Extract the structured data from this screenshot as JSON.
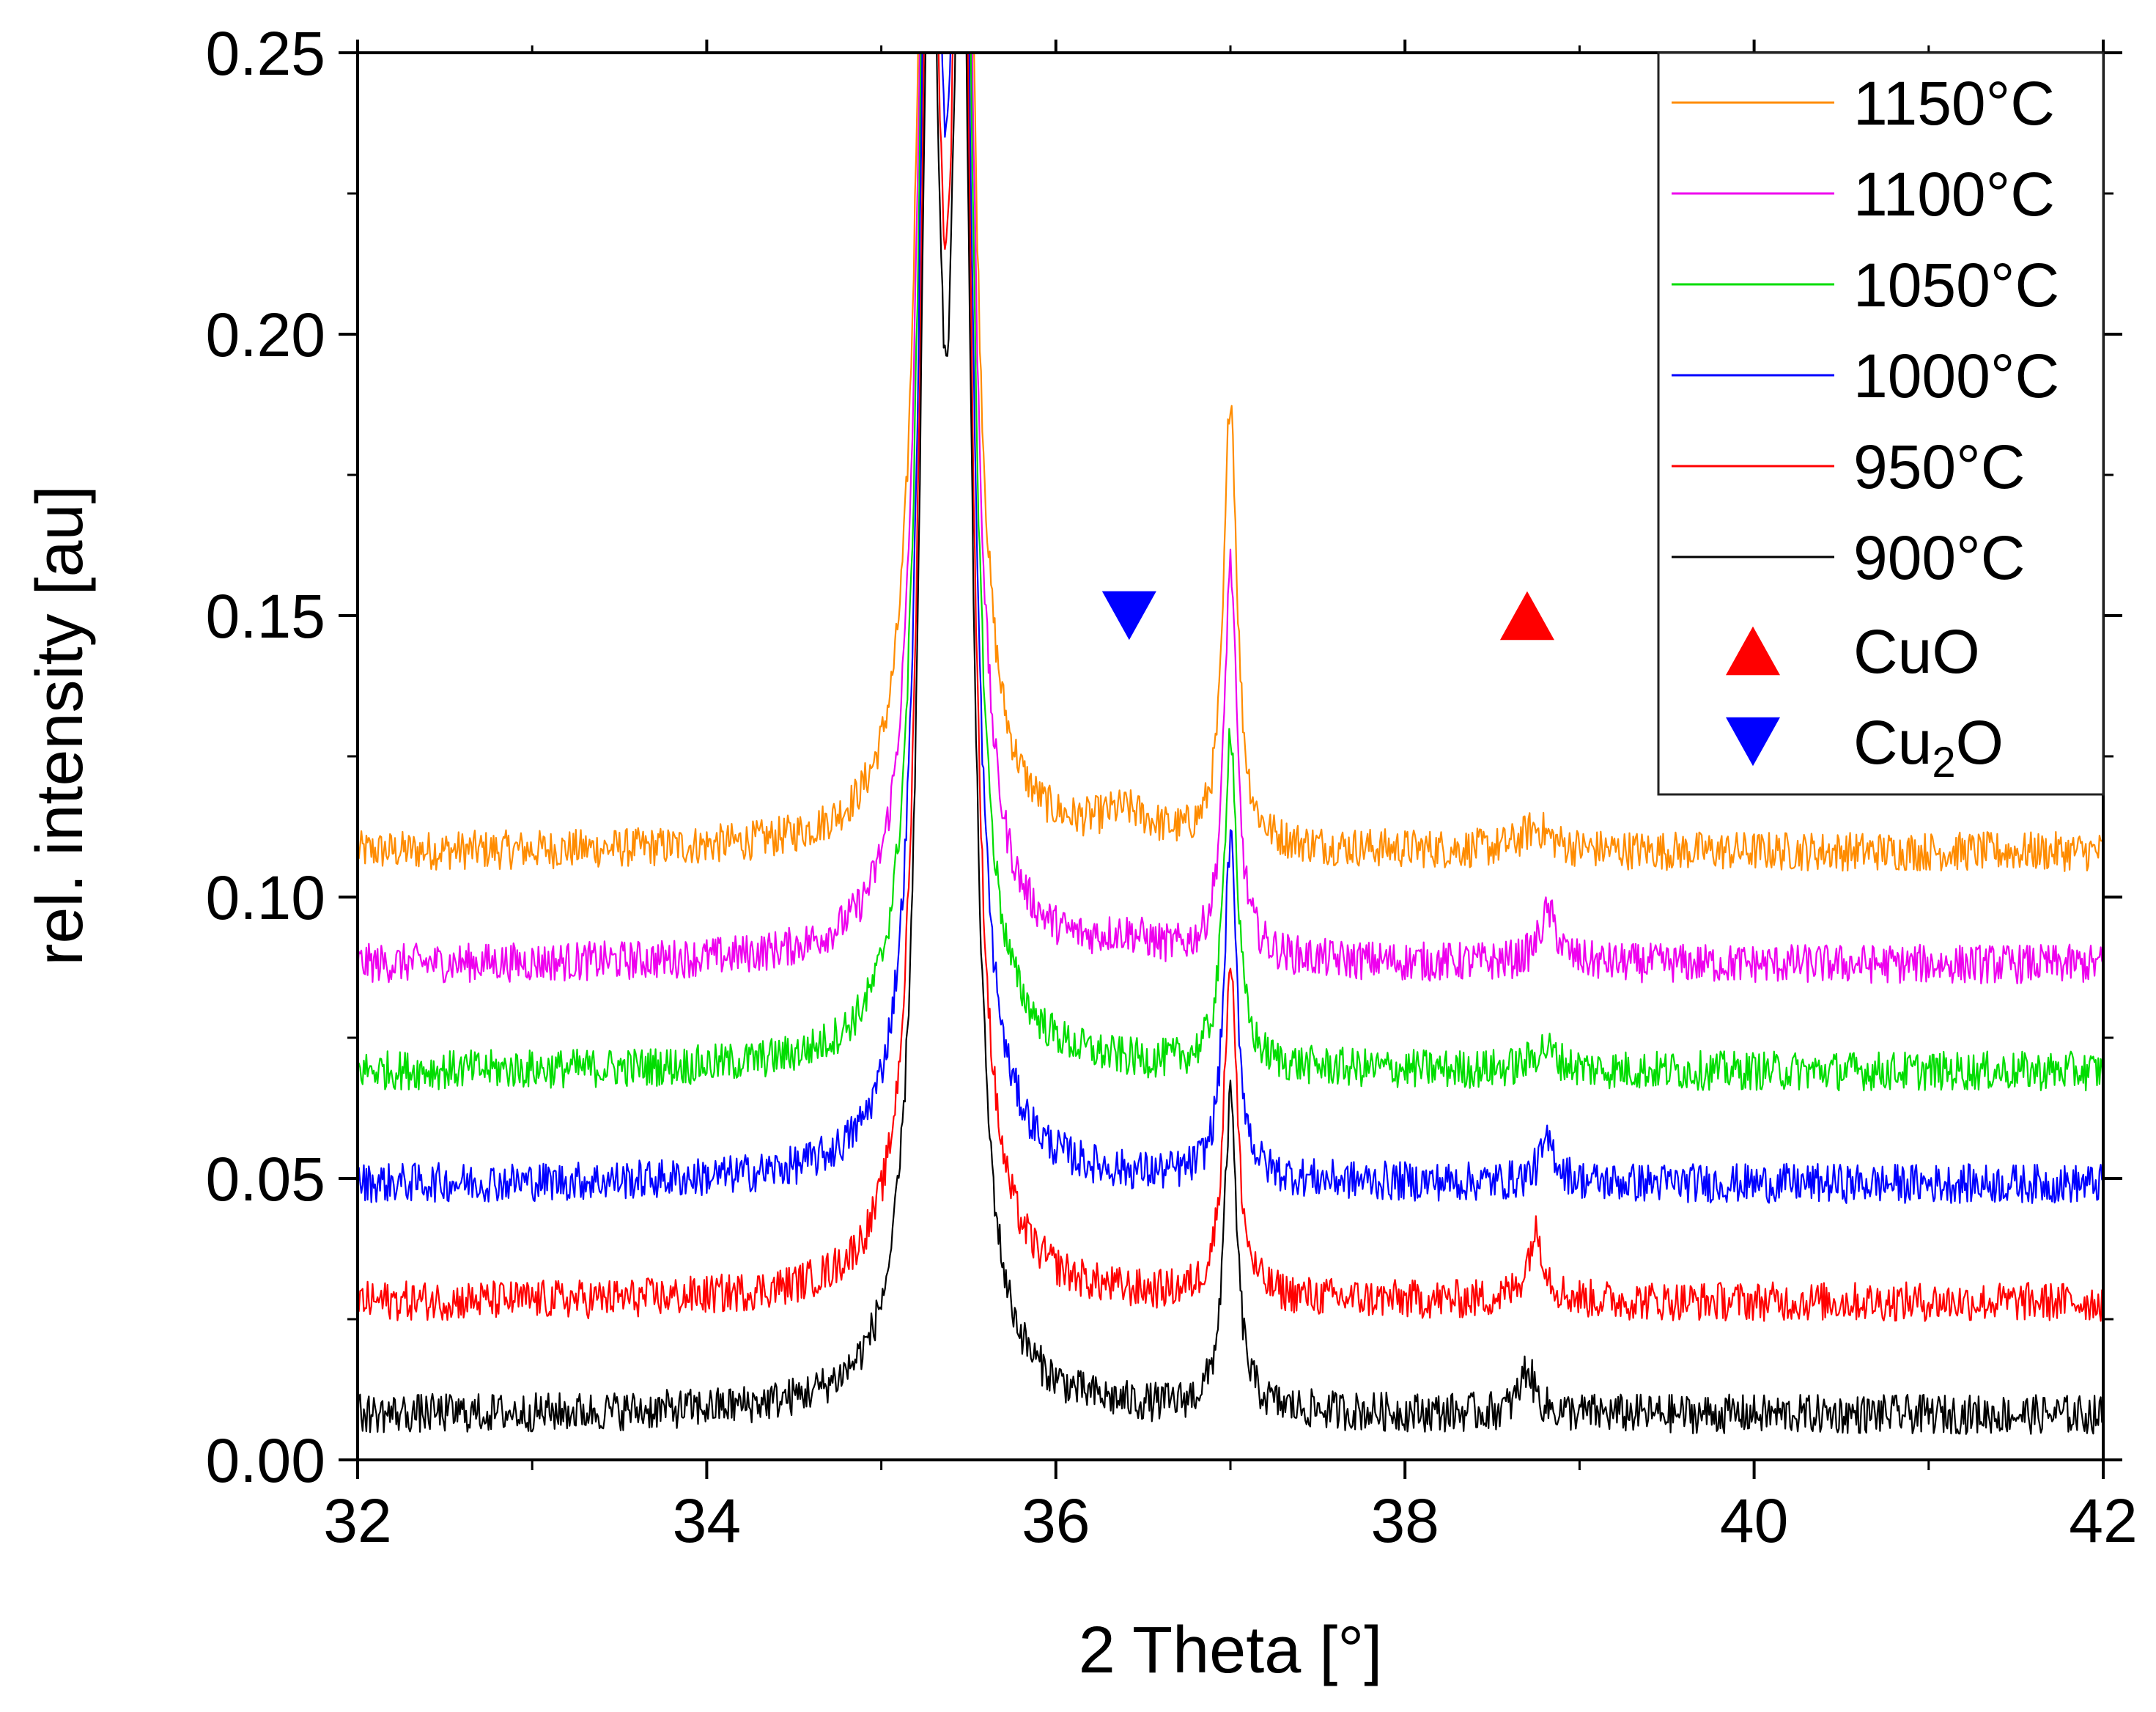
{
  "chart_data": {
    "type": "line",
    "title": "",
    "xlabel": "2 Theta [°]",
    "ylabel": "rel. intensity [au]",
    "xlim": [
      32,
      42
    ],
    "ylim": [
      0.0,
      0.25
    ],
    "x_ticks": [
      32,
      34,
      36,
      38,
      40,
      42
    ],
    "x_tick_labels": [
      "32",
      "34",
      "36",
      "38",
      "40",
      "42"
    ],
    "y_ticks": [
      0.0,
      0.05,
      0.1,
      0.15,
      0.2,
      0.25
    ],
    "y_tick_labels": [
      "0.00",
      "0.05",
      "0.10",
      "0.15",
      "0.20",
      "0.25"
    ],
    "grid": false,
    "legend_position": "top-right",
    "noise_amplitude": 0.0035,
    "series": [
      {
        "name": "1150°C",
        "color": "#ff8c00",
        "baseline": 0.108,
        "peaks": [
          {
            "x": 35.28,
            "h": 0.25,
            "w": 0.07
          },
          {
            "x": 35.46,
            "h": 0.25,
            "w": 0.07
          },
          {
            "x": 37.0,
            "h": 0.08,
            "w": 0.045
          },
          {
            "x": 36.4,
            "h": 0.005,
            "w": 0.2
          },
          {
            "x": 38.75,
            "h": 0.004,
            "w": 0.1
          }
        ]
      },
      {
        "name": "1100°C",
        "color": "#ee00ee",
        "baseline": 0.088,
        "peaks": [
          {
            "x": 35.28,
            "h": 0.25,
            "w": 0.07
          },
          {
            "x": 35.46,
            "h": 0.25,
            "w": 0.07
          },
          {
            "x": 37.0,
            "h": 0.07,
            "w": 0.045
          },
          {
            "x": 38.82,
            "h": 0.009,
            "w": 0.06
          },
          {
            "x": 36.4,
            "h": 0.003,
            "w": 0.2
          }
        ]
      },
      {
        "name": "1050°C",
        "color": "#00dd00",
        "baseline": 0.069,
        "peaks": [
          {
            "x": 35.28,
            "h": 0.25,
            "w": 0.07
          },
          {
            "x": 35.46,
            "h": 0.25,
            "w": 0.07
          },
          {
            "x": 37.0,
            "h": 0.06,
            "w": 0.045
          },
          {
            "x": 38.8,
            "h": 0.004,
            "w": 0.08
          }
        ]
      },
      {
        "name": "1000°C",
        "color": "#0000ff",
        "baseline": 0.049,
        "peaks": [
          {
            "x": 35.28,
            "h": 0.25,
            "w": 0.07
          },
          {
            "x": 35.46,
            "h": 0.25,
            "w": 0.07
          },
          {
            "x": 37.0,
            "h": 0.06,
            "w": 0.045
          },
          {
            "x": 38.82,
            "h": 0.007,
            "w": 0.06
          }
        ]
      },
      {
        "name": "950°C",
        "color": "#ff0000",
        "baseline": 0.028,
        "peaks": [
          {
            "x": 35.28,
            "h": 0.25,
            "w": 0.07
          },
          {
            "x": 35.46,
            "h": 0.25,
            "w": 0.07
          },
          {
            "x": 37.0,
            "h": 0.06,
            "w": 0.045
          },
          {
            "x": 38.75,
            "h": 0.012,
            "w": 0.06
          }
        ]
      },
      {
        "name": "900°C",
        "color": "#000000",
        "baseline": 0.008,
        "peaks": [
          {
            "x": 35.28,
            "h": 0.25,
            "w": 0.07
          },
          {
            "x": 35.46,
            "h": 0.25,
            "w": 0.07
          },
          {
            "x": 37.0,
            "h": 0.055,
            "w": 0.045
          },
          {
            "x": 38.7,
            "h": 0.008,
            "w": 0.05
          }
        ]
      }
    ],
    "markers": [
      {
        "name": "CuO",
        "label": "CuO",
        "symbol": "triangle-up",
        "color": "#ff0000",
        "x": 38.7,
        "y": 0.15
      },
      {
        "name": "Cu2O",
        "label_main": "Cu",
        "label_sub": "2",
        "label_tail": "O",
        "symbol": "triangle-down",
        "color": "#0000ff",
        "x": 36.42,
        "y": 0.15
      }
    ]
  }
}
